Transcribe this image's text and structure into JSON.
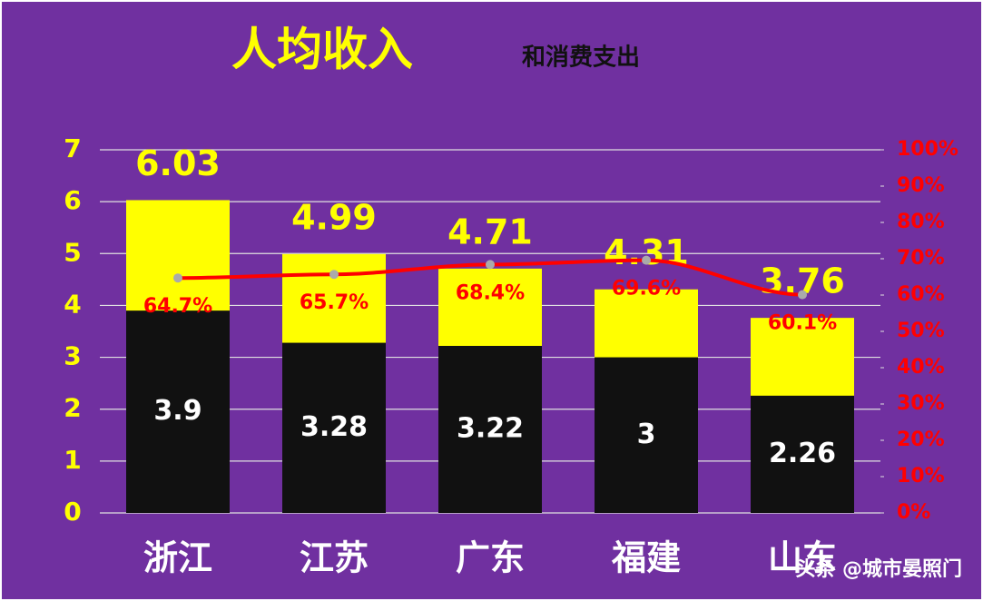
{
  "chart_data": {
    "type": "bar",
    "title": "人均收入",
    "subtitle": "和消费支出",
    "categories": [
      "浙江",
      "江苏",
      "广东",
      "福建",
      "山东"
    ],
    "series": [
      {
        "color": "#ffff00",
        "values": [
          6.03,
          4.99,
          4.71,
          4.31,
          3.76
        ]
      },
      {
        "color": "#111111",
        "values": [
          3.9,
          3.28,
          3.22,
          3,
          2.26
        ]
      },
      {
        "color": "#ff0000",
        "axis": "y2",
        "chart_type": "line",
        "values": [
          64.7,
          65.7,
          68.4,
          69.6,
          60.1
        ],
        "value_labels": [
          "64.7%",
          "65.7%",
          "68.4%",
          "69.6%",
          "60.1%"
        ]
      }
    ],
    "ylim": [
      0,
      7
    ],
    "yticks": [
      0,
      1,
      2,
      3,
      4,
      5,
      6,
      7
    ],
    "y2lim": [
      0,
      100
    ],
    "y2ticks": [
      {
        "value": 0,
        "label": "0%"
      },
      {
        "value": 10,
        "label": "10%"
      },
      {
        "value": 20,
        "label": "20%"
      },
      {
        "value": 30,
        "label": "30%"
      },
      {
        "value": 40,
        "label": "40%"
      },
      {
        "value": 50,
        "label": "50%"
      },
      {
        "value": 60,
        "label": "60%"
      },
      {
        "value": 70,
        "label": "70%"
      },
      {
        "value": 80,
        "label": "80%"
      },
      {
        "value": 90,
        "label": "90%"
      },
      {
        "value": 100,
        "label": "100%"
      }
    ],
    "grid": true,
    "watermark": "头条 @城市晏照门"
  }
}
